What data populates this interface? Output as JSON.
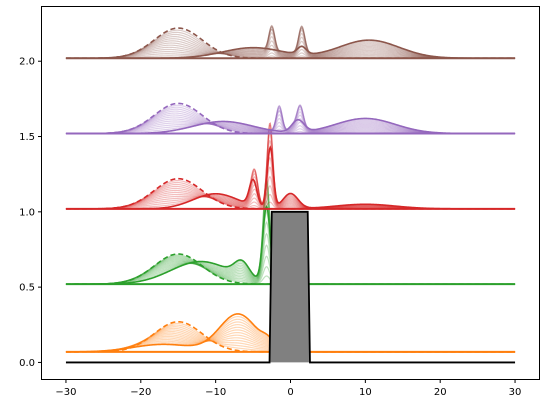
{
  "chart_data": {
    "type": "line",
    "title": "",
    "xlabel": "",
    "ylabel": "",
    "xlim": [
      -33.2,
      33.2
    ],
    "ylim": [
      -0.11,
      2.36
    ],
    "x_ticks": [
      -30,
      -20,
      -10,
      0,
      10,
      20,
      30
    ],
    "x_tick_labels": [
      "−30",
      "−20",
      "−10",
      "0",
      "10",
      "20",
      "30"
    ],
    "y_ticks": [
      0.0,
      0.5,
      1.0,
      1.5,
      2.0
    ],
    "y_tick_labels": [
      "0.0",
      "0.5",
      "1.0",
      "1.5",
      "2.0"
    ],
    "grid": false,
    "barrier": {
      "color": "#000000",
      "fill": "#808080",
      "points": [
        [
          -30,
          0
        ],
        [
          -2.8,
          0
        ],
        [
          -2.5,
          1.0
        ],
        [
          2.3,
          1.0
        ],
        [
          2.6,
          0
        ],
        [
          30,
          0
        ]
      ]
    },
    "series": [
      {
        "color": "#ff7f0e",
        "baseline": 0.07,
        "initial": {
          "center": -15,
          "width": 3.2,
          "amp": 0.2,
          "dash": true
        },
        "final": [
          {
            "center": -17,
            "width": 4,
            "amp": 0.05
          },
          {
            "center": -7,
            "width": 2.5,
            "amp": 0.25
          },
          {
            "center": -3,
            "width": 0.8,
            "amp": 0.04
          }
        ],
        "peak_spikes": []
      },
      {
        "color": "#2ca02c",
        "baseline": 0.52,
        "initial": {
          "center": -15,
          "width": 3.2,
          "amp": 0.2,
          "dash": true
        },
        "final": [
          {
            "center": -12,
            "width": 4,
            "amp": 0.15
          },
          {
            "center": -6.5,
            "width": 1,
            "amp": 0.1
          },
          {
            "center": -3.2,
            "width": 0.5,
            "amp": 0.5
          }
        ],
        "peak_spikes": [
          {
            "center": -3.2,
            "width": 0.4,
            "amp": 0.45
          }
        ]
      },
      {
        "color": "#d62728",
        "baseline": 1.02,
        "initial": {
          "center": -15,
          "width": 3.2,
          "amp": 0.2,
          "dash": true
        },
        "final": [
          {
            "center": -10,
            "width": 3,
            "amp": 0.1
          },
          {
            "center": -5,
            "width": 0.5,
            "amp": 0.17
          },
          {
            "center": -2.7,
            "width": 0.4,
            "amp": 0.4
          },
          {
            "center": 0,
            "width": 1,
            "amp": 0.1
          },
          {
            "center": 10,
            "width": 4,
            "amp": 0.03
          }
        ],
        "peak_spikes": [
          {
            "center": -2.8,
            "width": 0.35,
            "amp": 0.4
          },
          {
            "center": -4.7,
            "width": 0.4,
            "amp": 0.2
          }
        ]
      },
      {
        "color": "#9467bd",
        "baseline": 1.52,
        "initial": {
          "center": -15,
          "width": 3.2,
          "amp": 0.2,
          "dash": true
        },
        "final": [
          {
            "center": -9,
            "width": 4,
            "amp": 0.08
          },
          {
            "center": 1,
            "width": 0.8,
            "amp": 0.08
          },
          {
            "center": 10,
            "width": 4,
            "amp": 0.1
          }
        ],
        "peak_spikes": [
          {
            "center": -1.5,
            "width": 0.4,
            "amp": 0.28
          },
          {
            "center": 1.3,
            "width": 0.4,
            "amp": 0.2
          }
        ]
      },
      {
        "color": "#8c564b",
        "baseline": 2.02,
        "initial": {
          "center": -15,
          "width": 3.2,
          "amp": 0.2,
          "dash": true
        },
        "final": [
          {
            "center": -5,
            "width": 4,
            "amp": 0.07
          },
          {
            "center": 1.5,
            "width": 0.6,
            "amp": 0.05
          },
          {
            "center": 10.5,
            "width": 4,
            "amp": 0.12
          }
        ],
        "peak_spikes": [
          {
            "center": -2.5,
            "width": 0.4,
            "amp": 0.28
          },
          {
            "center": 1.5,
            "width": 0.4,
            "amp": 0.25
          }
        ]
      }
    ]
  }
}
